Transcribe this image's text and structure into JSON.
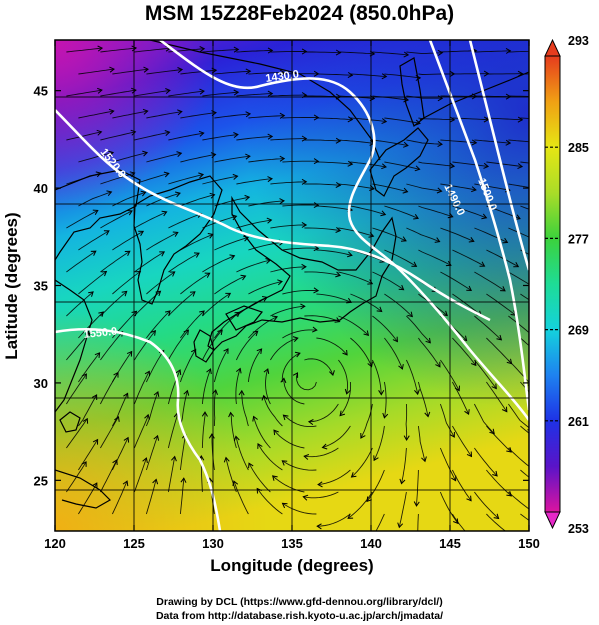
{
  "title": "MSM 15Z28Feb2024 (850.0hPa)",
  "x_axis": {
    "label": "Longitude (degrees)",
    "range": [
      120,
      150
    ],
    "ticks": [
      120,
      125,
      130,
      135,
      140,
      145,
      150
    ]
  },
  "y_axis": {
    "label": "Latitude  (degrees)",
    "range": [
      22.4,
      47.6
    ],
    "ticks": [
      25,
      30,
      35,
      40,
      45
    ]
  },
  "colorbar": {
    "range": [
      253,
      293
    ],
    "labels": [
      "293",
      "285",
      "277",
      "269",
      "261",
      "253"
    ],
    "colors": [
      "#dc14a0",
      "#5a14c8",
      "#1e32e6",
      "#1e82f0",
      "#14d2dc",
      "#1edc96",
      "#3cd23c",
      "#aadc28",
      "#e6e614",
      "#f0a014",
      "#e63c1e"
    ]
  },
  "contours": {
    "color": "#ffffff",
    "labels": [
      "1430.0",
      "1520.0",
      "1490.0",
      "1500.0",
      "1550.0"
    ]
  },
  "credits": [
    "Drawing by DCL (https://www.gfd-dennou.org/library/dcl/)",
    "Data from http://database.rish.kyoto-u.ac.jp/arch/jmadata/"
  ]
}
